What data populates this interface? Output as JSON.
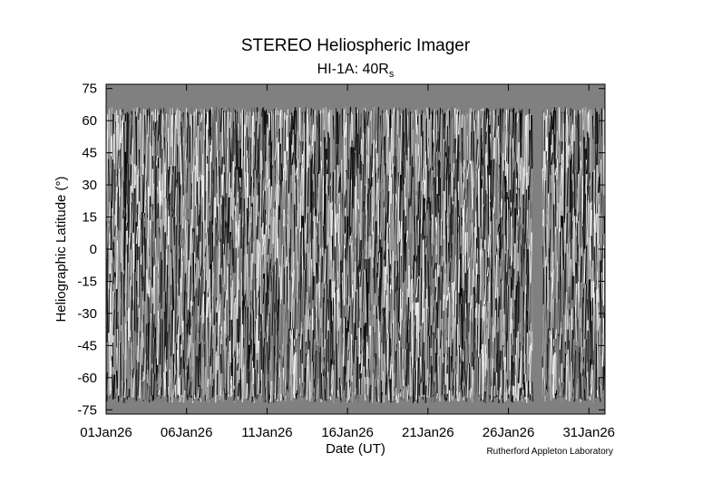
{
  "chart_data": {
    "type": "image",
    "title": "STEREO Heliospheric Imager",
    "subtitle": "HI-1A: 40R",
    "subtitle_subscript": "s",
    "x_label": "Date (UT)",
    "y_label": "Heliographic Latitude (°)",
    "credit": "Rutherford Appleton Laboratory",
    "xlim": [
      1,
      32
    ],
    "xticks": [
      {
        "value": 1,
        "label": "01Jan26"
      },
      {
        "value": 6,
        "label": "06Jan26"
      },
      {
        "value": 11,
        "label": "11Jan26"
      },
      {
        "value": 16,
        "label": "16Jan26"
      },
      {
        "value": 21,
        "label": "21Jan26"
      },
      {
        "value": 26,
        "label": "26Jan26"
      },
      {
        "value": 31,
        "label": "31Jan26"
      }
    ],
    "ylim": [
      -77,
      77
    ],
    "yticks": [
      75,
      60,
      45,
      30,
      15,
      0,
      -15,
      -30,
      -45,
      -60,
      -75
    ]
  }
}
